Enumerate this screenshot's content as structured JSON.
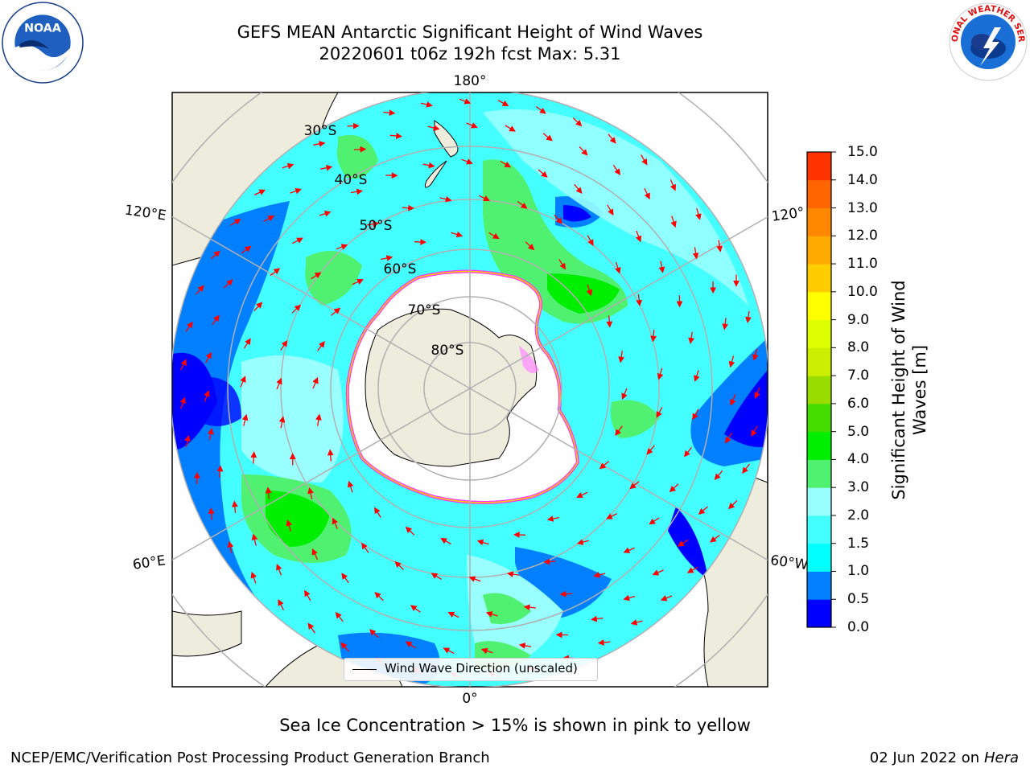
{
  "title": {
    "line1": "GEFS MEAN Antarctic Significant Height of Wind Waves",
    "line2": "20220601 t06z 192h fcst   Max: 5.31"
  },
  "map": {
    "projection": "south-polar-stereographic",
    "longitude_labels": {
      "top": "180°",
      "bottom": "0°",
      "upper_left": "120°E",
      "upper_right": "120°",
      "lower_left": "60°E",
      "lower_right": "60°W"
    },
    "latitude_labels": [
      "30°S",
      "40°S",
      "50°S",
      "60°S",
      "70°S",
      "80°S"
    ],
    "legend_text": "Wind Wave Direction (unscaled)",
    "colors": {
      "land": "#eeecdd",
      "ice": "#ffffff",
      "ice_edge": [
        "#ff33ff",
        "#ffcc00"
      ],
      "arrow": "#ff0000",
      "grid": "#b0b0b0"
    }
  },
  "colorbar": {
    "label": "Significant Height of Wind Waves [m]",
    "ticks": [
      "15.0",
      "14.0",
      "13.0",
      "12.0",
      "11.0",
      "10.0",
      "9.0",
      "8.0",
      "7.0",
      "6.0",
      "5.0",
      "4.0",
      "3.0",
      "2.0",
      "1.5",
      "1.0",
      "0.5",
      "0.0"
    ],
    "colors_bottom_to_top": [
      "#0000ff",
      "#0080ff",
      "#00ffff",
      "#44ffff",
      "#99ffff",
      "#50f070",
      "#00ee00",
      "#44dd00",
      "#99dd00",
      "#ccee00",
      "#ddff00",
      "#ffff00",
      "#ffcc00",
      "#ffaa00",
      "#ff8800",
      "#ff6600",
      "#ff3300"
    ]
  },
  "footer": {
    "sea_ice_note": "Sea Ice Concentration > 15% is shown in pink to yellow",
    "credit": "NCEP/EMC/Verification Post Processing Product Generation Branch",
    "date": "02 Jun 2022 on",
    "machine": "Hera"
  },
  "logos": {
    "noaa_text": "NOAA",
    "noaa_ring_text": "NATIONAL OCEANIC AND ATMOSPHERIC ADMINISTRATION • U.S. DEPARTMENT OF COMMERCE",
    "nws_ring_text": "NATIONAL WEATHER SERVICE"
  }
}
